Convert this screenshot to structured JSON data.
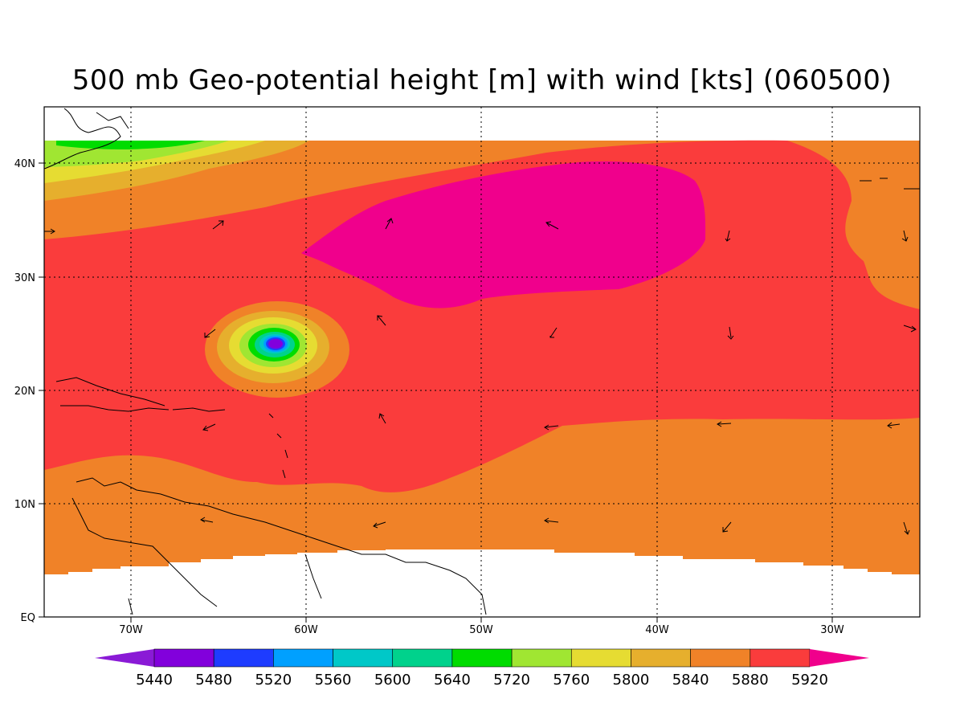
{
  "title": "500 mb Geo-potential height [m] with wind [kts] (060500)",
  "axes": {
    "lon_labels": [
      "70W",
      "60W",
      "50W",
      "40W",
      "30W"
    ],
    "lat_labels": [
      "40N",
      "30N",
      "20N",
      "10N",
      "EQ"
    ]
  },
  "colorbar": {
    "labels": [
      "5440",
      "5480",
      "5520",
      "5560",
      "5600",
      "5640",
      "5720",
      "5760",
      "5800",
      "5840",
      "5880",
      "5920"
    ],
    "colors": [
      "#8a1ad6",
      "#8200dc",
      "#1e3cff",
      "#00a0ff",
      "#00c8c8",
      "#00d28c",
      "#00dc00",
      "#a0e632",
      "#e6dc32",
      "#e6af2d",
      "#f08228",
      "#fa3c3c",
      "#f0008c"
    ]
  },
  "colors": {
    "c5880": "#f08228",
    "c5920": "#fa3c3c",
    "c5960": "#f0008c",
    "c5840": "#e6af2d",
    "c5800": "#e6dc32",
    "c5760": "#a0e632",
    "c5720": "#00dc00",
    "c5640": "#00d28c",
    "c5600": "#00c8c8",
    "c5520": "#00a0ff",
    "c5480": "#1e3cff",
    "c5440": "#8200dc"
  }
}
